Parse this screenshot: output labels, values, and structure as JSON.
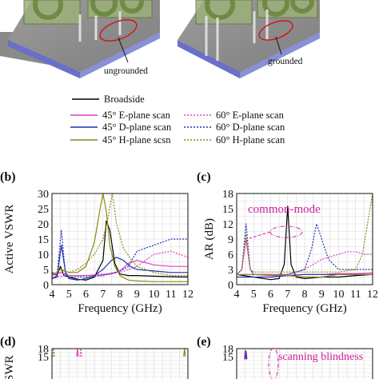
{
  "top_figure": {
    "left_caption": "ungrounded",
    "right_caption": "grounded"
  },
  "legend": [
    {
      "label": "Broadside",
      "color": "#000000",
      "dashed": false
    },
    {
      "label": "45° E-plane scan",
      "color": "#e040c0",
      "dashed": false
    },
    {
      "label": "60° E-plane scan",
      "color": "#e040c0",
      "dashed": true
    },
    {
      "label": "45° D-plane scan",
      "color": "#2030b0",
      "dashed": false
    },
    {
      "label": "60° D-plane scan",
      "color": "#2030b0",
      "dashed": true
    },
    {
      "label": "45° H-plane scsn",
      "color": "#8a8a10",
      "dashed": false
    },
    {
      "label": "60° H-plane scan",
      "color": "#8a8a10",
      "dashed": true
    }
  ],
  "panels": {
    "b": {
      "tag": "(b)",
      "ylabel": "Active VSWR"
    },
    "c": {
      "tag": "(c)",
      "ylabel": "AR (dB)",
      "annotation": "common-mode"
    },
    "d": {
      "tag": "(d)",
      "ylabel": "VSWR"
    },
    "e": {
      "tag": "(e)",
      "annotation": "scanning blindness"
    }
  },
  "chart_data": [
    {
      "id": "b",
      "type": "line",
      "title": "",
      "xlabel": "Frequency (GHz)",
      "ylabel": "Active VSWR",
      "xlim": [
        4,
        12
      ],
      "ylim": [
        0,
        30
      ],
      "xticks": [
        4,
        5,
        6,
        7,
        8,
        9,
        10,
        11,
        12
      ],
      "yticks": [
        0,
        5,
        10,
        15,
        20,
        25,
        30
      ],
      "grid": true,
      "series": [
        {
          "name": "Broadside",
          "color": "#000000",
          "dashed": false,
          "x": [
            4,
            4.3,
            4.5,
            4.7,
            5,
            5.5,
            6,
            6.5,
            7,
            7.2,
            7.4,
            7.7,
            8,
            8.5,
            9,
            10,
            11,
            12
          ],
          "y": [
            4,
            3,
            6,
            3,
            2.5,
            1.8,
            1.5,
            2.5,
            8,
            21,
            18,
            7,
            3.5,
            3,
            3,
            2.8,
            2.6,
            2.5
          ]
        },
        {
          "name": "45° E-plane scan",
          "color": "#e040c0",
          "dashed": false,
          "x": [
            4,
            4.5,
            5,
            6,
            7,
            7.5,
            8,
            8.5,
            9,
            10,
            11,
            12
          ],
          "y": [
            3,
            4,
            3,
            3,
            3.2,
            3.5,
            4.5,
            7,
            8,
            6.5,
            6,
            6
          ]
        },
        {
          "name": "60° E-plane scan",
          "color": "#e040c0",
          "dashed": true,
          "x": [
            4,
            5,
            6,
            7,
            8,
            9,
            9.5,
            10,
            11,
            11.5,
            12
          ],
          "y": [
            2.5,
            3,
            3,
            3.5,
            4,
            6,
            8,
            10,
            11,
            10,
            9
          ]
        },
        {
          "name": "45° D-plane scan",
          "color": "#2030b0",
          "dashed": false,
          "x": [
            4,
            4.3,
            4.55,
            4.8,
            5,
            5.5,
            6,
            6.5,
            7,
            7.5,
            7.8,
            8.2,
            8.6,
            9,
            10,
            11,
            12
          ],
          "y": [
            2,
            2.5,
            13,
            4,
            2,
            1.5,
            2,
            3,
            5,
            8,
            9,
            8,
            6,
            5,
            4.5,
            4,
            4
          ]
        },
        {
          "name": "60° D-plane scan",
          "color": "#2030b0",
          "dashed": true,
          "x": [
            4,
            4.3,
            4.55,
            4.8,
            5,
            6,
            7,
            8,
            8.5,
            9,
            10,
            11,
            12
          ],
          "y": [
            2,
            3,
            18,
            3,
            2.5,
            2.5,
            3,
            4.5,
            6,
            11,
            13,
            15,
            15
          ]
        },
        {
          "name": "45° H-plane scsn",
          "color": "#8a8a10",
          "dashed": false,
          "x": [
            4,
            4.5,
            5,
            5.5,
            6,
            6.5,
            6.8,
            7,
            7.2,
            7.4,
            7.7,
            8,
            8.5,
            9,
            10,
            11,
            12
          ],
          "y": [
            3,
            5,
            4,
            4,
            6,
            14,
            24,
            30,
            24,
            13,
            6,
            3,
            1.5,
            1.2,
            1,
            1,
            1
          ]
        },
        {
          "name": "60° H-plane scan",
          "color": "#8a8a10",
          "dashed": true,
          "x": [
            4,
            4.5,
            5,
            5.5,
            6,
            6.5,
            7,
            7.3,
            7.55,
            7.8,
            8.2,
            8.7,
            9,
            10,
            11,
            12
          ],
          "y": [
            3,
            5,
            4,
            5,
            7,
            10,
            15,
            22,
            30,
            20,
            12,
            8,
            6,
            4,
            3,
            3
          ]
        }
      ]
    },
    {
      "id": "c",
      "type": "line",
      "title": "",
      "xlabel": "Frequency (GHz)",
      "ylabel": "AR (dB)",
      "xlim": [
        4,
        12
      ],
      "ylim": [
        0,
        18
      ],
      "xticks": [
        4,
        5,
        6,
        7,
        8,
        9,
        10,
        11,
        12
      ],
      "yticks": [
        0,
        3,
        6,
        9,
        12,
        15,
        18
      ],
      "grid": true,
      "series": [
        {
          "name": "Broadside",
          "color": "#000000",
          "dashed": false,
          "x": [
            4,
            5,
            6,
            6.5,
            6.8,
            7,
            7.2,
            7.5,
            8,
            9,
            10,
            11,
            12
          ],
          "y": [
            2,
            1.5,
            1,
            1.2,
            4,
            15.5,
            4,
            1.5,
            1.2,
            1.5,
            1.5,
            1.8,
            2
          ]
        },
        {
          "name": "45° E-plane scan",
          "color": "#e040c0",
          "dashed": false,
          "x": [
            4,
            4.3,
            4.55,
            4.8,
            5,
            6,
            7,
            8,
            9,
            10,
            11,
            12
          ],
          "y": [
            2,
            3,
            9,
            3,
            2,
            1.8,
            1.8,
            2,
            2,
            2.2,
            2.2,
            2.3
          ]
        },
        {
          "name": "60° E-plane scan",
          "color": "#e040c0",
          "dashed": true,
          "x": [
            4,
            5,
            6,
            7,
            7.5,
            8,
            8.5,
            9,
            9.5,
            10,
            10.5,
            11,
            11.5,
            12
          ],
          "y": [
            2,
            2,
            2,
            2,
            2.5,
            3,
            4,
            5,
            5.5,
            6,
            6.5,
            6.5,
            6,
            6
          ]
        },
        {
          "name": "45° D-plane scan",
          "color": "#2030b0",
          "dashed": false,
          "x": [
            4,
            5,
            6,
            7,
            8,
            9,
            10,
            11,
            12
          ],
          "y": [
            1.5,
            1.5,
            1.5,
            1.8,
            2,
            2,
            2,
            2,
            2
          ]
        },
        {
          "name": "60° D-plane scan",
          "color": "#2030b0",
          "dashed": true,
          "x": [
            4,
            4.3,
            4.55,
            4.8,
            5,
            6,
            7,
            8,
            8.4,
            8.7,
            9,
            9.4,
            10,
            11,
            12
          ],
          "y": [
            2,
            3,
            12,
            3,
            2,
            2,
            2,
            3,
            7,
            12,
            9,
            5,
            3,
            3,
            3
          ]
        },
        {
          "name": "45° H-plane scsn",
          "color": "#8a8a10",
          "dashed": false,
          "x": [
            4,
            5,
            6,
            7,
            8,
            9,
            10,
            11,
            12
          ],
          "y": [
            2,
            2,
            2,
            1.8,
            1.5,
            1.5,
            2,
            2,
            2
          ]
        },
        {
          "name": "60° H-plane scan",
          "color": "#8a8a10",
          "dashed": true,
          "x": [
            4,
            4.3,
            4.55,
            4.8,
            5,
            6,
            7,
            8,
            9,
            10,
            11,
            11.4,
            11.7,
            12
          ],
          "y": [
            2,
            3,
            10,
            3,
            2.5,
            2.5,
            2.5,
            2.5,
            2.5,
            2.5,
            3,
            6,
            12,
            18
          ]
        }
      ]
    },
    {
      "id": "d",
      "type": "line",
      "title": "",
      "xlabel": "",
      "ylabel": "VSWR",
      "xlim": [
        4,
        12
      ],
      "ylim": [
        0,
        18
      ],
      "yticks": [
        15,
        18
      ],
      "grid": true,
      "series": [
        {
          "name": "45° E-plane scan",
          "color": "#e040c0",
          "dashed": false,
          "x": [
            5.45,
            5.5,
            5.55
          ],
          "y": [
            15,
            18,
            15
          ]
        },
        {
          "name": "60° E-plane scan",
          "color": "#e040c0",
          "dashed": true,
          "x": [
            5.65,
            5.7,
            5.75
          ],
          "y": [
            15,
            18,
            15
          ]
        },
        {
          "name": "60° H-plane scan",
          "color": "#8a8a10",
          "dashed": true,
          "x": [
            4.05,
            4.1,
            4.15
          ],
          "y": [
            15,
            18,
            15
          ]
        },
        {
          "name": "45° H-plane scsn",
          "color": "#8a8a10",
          "dashed": false,
          "x": [
            11.75,
            11.8,
            11.85
          ],
          "y": [
            15,
            18,
            15
          ]
        }
      ]
    },
    {
      "id": "e",
      "type": "line",
      "title": "",
      "xlabel": "",
      "ylabel": "",
      "xlim": [
        4,
        12
      ],
      "ylim": [
        0,
        18
      ],
      "yticks": [
        15,
        18
      ],
      "grid": true,
      "series": [
        {
          "name": "45° E-plane scan",
          "color": "#e040c0",
          "dashed": false,
          "x": [
            4.45,
            4.5,
            4.55
          ],
          "y": [
            14,
            17.5,
            14
          ]
        },
        {
          "name": "45° D-plane scan",
          "color": "#2030b0",
          "dashed": false,
          "x": [
            4.5,
            4.55,
            4.6
          ],
          "y": [
            14,
            17,
            14
          ]
        }
      ]
    }
  ]
}
